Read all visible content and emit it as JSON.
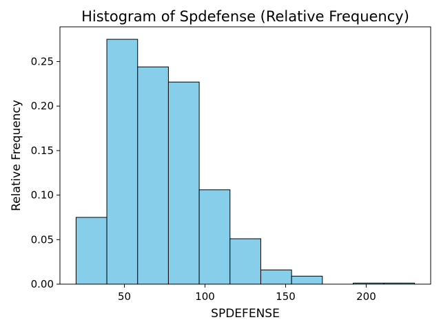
{
  "chart_data": {
    "type": "bar",
    "title": "Histogram of Spdefense (Relative Frequency)",
    "xlabel": "SPDEFENSE",
    "ylabel": "Relative Frequency",
    "xlim": [
      10,
      240
    ],
    "ylim": [
      0,
      0.289
    ],
    "xticks": [
      50,
      100,
      150,
      200
    ],
    "yticks": [
      0.0,
      0.05,
      0.1,
      0.15,
      0.2,
      0.25
    ],
    "ytick_labels": [
      "0.00",
      "0.05",
      "0.10",
      "0.15",
      "0.20",
      "0.25"
    ],
    "grid": false,
    "bar_color": "#87ceeb",
    "edge_color": "#000000",
    "bins": [
      {
        "start": 20.0,
        "end": 39.1,
        "value": 0.075
      },
      {
        "start": 39.1,
        "end": 58.2,
        "value": 0.275
      },
      {
        "start": 58.2,
        "end": 77.3,
        "value": 0.244
      },
      {
        "start": 77.3,
        "end": 96.4,
        "value": 0.227
      },
      {
        "start": 96.4,
        "end": 115.5,
        "value": 0.106
      },
      {
        "start": 115.5,
        "end": 134.6,
        "value": 0.051
      },
      {
        "start": 134.6,
        "end": 153.7,
        "value": 0.016
      },
      {
        "start": 153.7,
        "end": 172.8,
        "value": 0.009
      },
      {
        "start": 172.8,
        "end": 191.9,
        "value": 0.0
      },
      {
        "start": 191.9,
        "end": 211.0,
        "value": 0.0012
      },
      {
        "start": 211.0,
        "end": 230.0,
        "value": 0.0012
      }
    ]
  }
}
